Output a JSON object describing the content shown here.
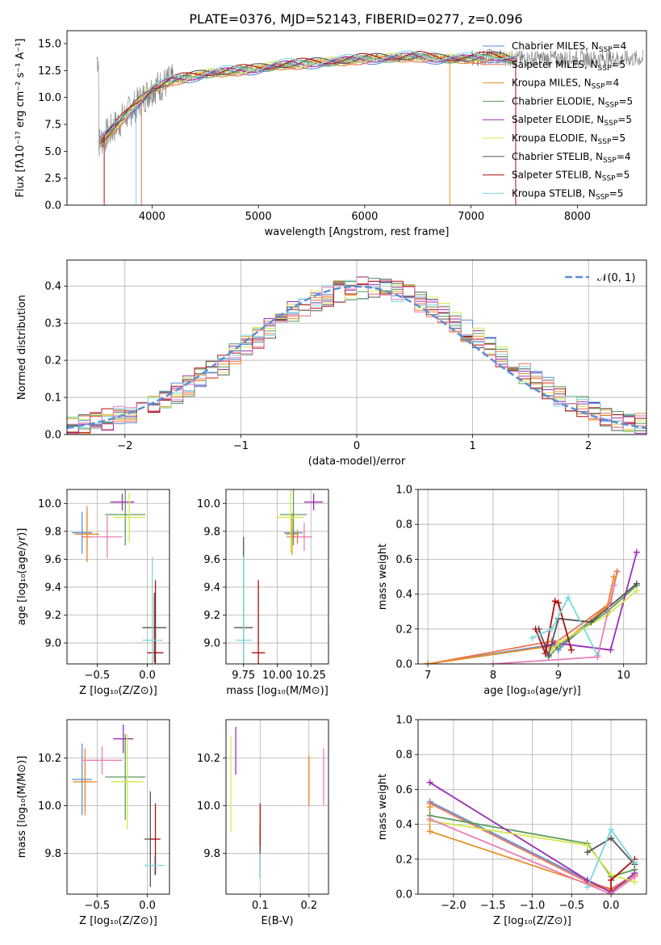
{
  "title": "PLATE=0376, MJD=52143, FIBERID=0277, z=0.096",
  "colors": {
    "chabrier_miles": "#5b8fd6",
    "salpeter_miles": "#f26f4f",
    "kroupa_miles": "#e6902a",
    "chabrier_elodie": "#5a9a5a",
    "salpeter_elodie": "#9a2fb5",
    "kroupa_elodie": "#d4e84a",
    "chabrier_stelib": "#555555",
    "salpeter_stelib": "#b01010",
    "kroupa_stelib": "#7ad8dc",
    "extra_pink": "#e87fb8",
    "normal_curve": "#5b8fd6"
  },
  "chart_data": [
    {
      "id": "spectrum",
      "type": "line",
      "xlabel": "wavelength [Angstrom, rest frame]",
      "ylabel": "Flux [fλ10⁻¹⁷ erg cm⁻² s⁻¹ A⁻¹]",
      "xlim": [
        3200,
        8650
      ],
      "ylim": [
        0,
        16.2
      ],
      "xticks": [
        4000,
        5000,
        6000,
        7000,
        8000
      ],
      "yticks": [
        0.0,
        2.5,
        5.0,
        7.5,
        10.0,
        12.5,
        15.0
      ],
      "legend_position": "right",
      "legend": [
        {
          "label": "Chabrier MILES, N_SSP=4",
          "color_key": "chabrier_miles"
        },
        {
          "label": "Salpeter MILES, N_SSP=5",
          "color_key": "salpeter_miles"
        },
        {
          "label": "Kroupa MILES, N_SSP=4",
          "color_key": "kroupa_miles"
        },
        {
          "label": "Chabrier ELODIE, N_SSP=5",
          "color_key": "chabrier_elodie"
        },
        {
          "label": "Salpeter ELODIE, N_SSP=5",
          "color_key": "salpeter_elodie"
        },
        {
          "label": "Kroupa ELODIE, N_SSP=5",
          "color_key": "kroupa_elodie"
        },
        {
          "label": "Chabrier STELIB, N_SSP=4",
          "color_key": "chabrier_stelib"
        },
        {
          "label": "Salpeter STELIB, N_SSP=5",
          "color_key": "salpeter_stelib"
        },
        {
          "label": "Kroupa STELIB, N_SSP=5",
          "color_key": "kroupa_stelib"
        }
      ],
      "continuum": {
        "x": [
          3500,
          3600,
          3700,
          3800,
          3900,
          4000,
          4200,
          4500,
          4800,
          5000,
          5200,
          5500,
          5800,
          6000,
          6300,
          6500,
          6700,
          7000,
          7200,
          7400
        ],
        "y": [
          5.8,
          6.8,
          7.8,
          8.8,
          9.8,
          10.8,
          11.6,
          12.2,
          12.5,
          12.7,
          13.0,
          13.2,
          13.4,
          13.6,
          13.7,
          13.8,
          13.6,
          13.6,
          13.8,
          13.6
        ]
      }
    },
    {
      "id": "residuals",
      "type": "step",
      "xlabel": "(data-model)/error",
      "ylabel": "Normed distribution",
      "xlim": [
        -2.5,
        2.5
      ],
      "ylim": [
        0,
        0.47
      ],
      "xticks": [
        -2,
        -1,
        0,
        1,
        2
      ],
      "yticks": [
        0.0,
        0.1,
        0.2,
        0.3,
        0.4
      ],
      "legend_position": "top-right",
      "legend": [
        {
          "label": "𝒩(0, 1)",
          "color_key": "normal_curve"
        }
      ],
      "bin_width": 0.1,
      "x_start": -2.5,
      "envelope": [
        0.025,
        0.03,
        0.035,
        0.04,
        0.05,
        0.06,
        0.07,
        0.08,
        0.095,
        0.11,
        0.13,
        0.15,
        0.17,
        0.19,
        0.215,
        0.24,
        0.26,
        0.285,
        0.31,
        0.33,
        0.345,
        0.36,
        0.375,
        0.385,
        0.39,
        0.395,
        0.395,
        0.39,
        0.385,
        0.375,
        0.36,
        0.345,
        0.325,
        0.3,
        0.28,
        0.26,
        0.235,
        0.21,
        0.19,
        0.165,
        0.145,
        0.125,
        0.105,
        0.09,
        0.075,
        0.06,
        0.05,
        0.04,
        0.035,
        0.03
      ]
    },
    {
      "id": "age_vs_Z",
      "type": "errorbar",
      "xlabel": "Z [log₁₀(Z/Z⊙)]",
      "ylabel": "age  [log₁₀(age/yr)]",
      "xlim": [
        -0.8,
        0.22
      ],
      "ylim": [
        8.85,
        10.1
      ],
      "xticks": [
        -0.5,
        0.0
      ],
      "yticks": [
        9.0,
        9.2,
        9.4,
        9.6,
        9.8,
        10.0
      ],
      "points": [
        {
          "c": "chabrier_miles",
          "x": -0.65,
          "y": 9.79,
          "xerr": 0.1,
          "yerr": 0.15
        },
        {
          "c": "salpeter_miles",
          "x": -0.6,
          "y": 9.76,
          "xerr": 0.05,
          "yerr": 0.18
        },
        {
          "c": "kroupa_miles",
          "x": -0.6,
          "y": 9.78,
          "xerr": 0.12,
          "yerr": 0.2
        },
        {
          "c": "chabrier_elodie",
          "x": -0.22,
          "y": 9.92,
          "xerr": 0.2,
          "yerr": 0.22
        },
        {
          "c": "salpeter_elodie",
          "x": -0.25,
          "y": 10.01,
          "xerr": 0.12,
          "yerr": 0.06
        },
        {
          "c": "kroupa_elodie",
          "x": -0.18,
          "y": 9.9,
          "xerr": 0.16,
          "yerr": 0.18
        },
        {
          "c": "chabrier_stelib",
          "x": 0.07,
          "y": 9.11,
          "xerr": 0.12,
          "yerr": 0.25
        },
        {
          "c": "salpeter_stelib",
          "x": 0.08,
          "y": 8.93,
          "xerr": 0.08,
          "yerr": 0.52
        },
        {
          "c": "kroupa_stelib",
          "x": 0.05,
          "y": 9.02,
          "xerr": 0.1,
          "yerr": 0.6
        },
        {
          "c": "extra_pink",
          "x": -0.4,
          "y": 9.76,
          "xerr": 0.15,
          "yerr": 0.15
        }
      ]
    },
    {
      "id": "age_vs_mass",
      "type": "errorbar",
      "xlabel": "mass [log₁₀(M/M⊙)]",
      "ylabel": "",
      "xlim": [
        9.62,
        10.38
      ],
      "ylim": [
        8.85,
        10.1
      ],
      "xticks": [
        9.75,
        10.0,
        10.25
      ],
      "yticks": [
        9.0,
        9.2,
        9.4,
        9.6,
        9.8,
        10.0
      ],
      "points": [
        {
          "c": "chabrier_miles",
          "x": 10.12,
          "y": 9.79,
          "xerr": 0.07,
          "yerr": 0.04
        },
        {
          "c": "salpeter_miles",
          "x": 10.15,
          "y": 9.76,
          "xerr": 0.08,
          "yerr": 0.05
        },
        {
          "c": "kroupa_miles",
          "x": 10.11,
          "y": 9.78,
          "xerr": 0.05,
          "yerr": 0.15
        },
        {
          "c": "chabrier_elodie",
          "x": 10.12,
          "y": 9.92,
          "xerr": 0.1,
          "yerr": 0.22
        },
        {
          "c": "salpeter_elodie",
          "x": 10.27,
          "y": 10.01,
          "xerr": 0.07,
          "yerr": 0.06
        },
        {
          "c": "kroupa_elodie",
          "x": 10.1,
          "y": 9.9,
          "xerr": 0.1,
          "yerr": 0.25
        },
        {
          "c": "chabrier_stelib",
          "x": 9.75,
          "y": 9.11,
          "xerr": 0.07,
          "yerr": 0.65
        },
        {
          "c": "salpeter_stelib",
          "x": 9.86,
          "y": 8.93,
          "xerr": 0.05,
          "yerr": 0.52
        },
        {
          "c": "kroupa_stelib",
          "x": 9.75,
          "y": 9.02,
          "xerr": 0.06,
          "yerr": 0.6
        },
        {
          "c": "extra_pink",
          "x": 10.2,
          "y": 9.76,
          "xerr": 0.06,
          "yerr": 0.1
        }
      ]
    },
    {
      "id": "weight_vs_age",
      "type": "line",
      "xlabel": "age  [log₁₀(age/yr)]",
      "ylabel": "mass weight",
      "xlim": [
        6.85,
        10.35
      ],
      "ylim": [
        0,
        1.0
      ],
      "xticks": [
        7,
        8,
        9,
        10
      ],
      "yticks": [
        0.0,
        0.2,
        0.4,
        0.6,
        0.8,
        1.0
      ],
      "series": [
        {
          "c": "chabrier_miles",
          "x": [
            7.0,
            8.9,
            9.0,
            9.8,
            9.9
          ],
          "y": [
            0.0,
            0.11,
            0.08,
            0.35,
            0.53
          ]
        },
        {
          "c": "salpeter_miles",
          "x": [
            7.0,
            8.9,
            8.95,
            9.8,
            9.9
          ],
          "y": [
            0.0,
            0.13,
            0.12,
            0.35,
            0.53
          ]
        },
        {
          "c": "kroupa_miles",
          "x": [
            7.0,
            8.85,
            9.0,
            9.75,
            9.85
          ],
          "y": [
            0.0,
            0.1,
            0.1,
            0.33,
            0.5
          ]
        },
        {
          "c": "chabrier_elodie",
          "x": [
            8.85,
            9.0,
            9.75,
            10.2
          ],
          "y": [
            0.04,
            0.1,
            0.3,
            0.45
          ]
        },
        {
          "c": "salpeter_elodie",
          "x": [
            8.8,
            8.95,
            9.8,
            10.2
          ],
          "y": [
            0.1,
            0.12,
            0.08,
            0.64
          ]
        },
        {
          "c": "kroupa_elodie",
          "x": [
            8.9,
            9.0,
            9.75,
            10.2
          ],
          "y": [
            0.08,
            0.12,
            0.28,
            0.42
          ]
        },
        {
          "c": "chabrier_stelib",
          "x": [
            8.7,
            8.85,
            9.0,
            9.5,
            10.2
          ],
          "y": [
            0.2,
            0.05,
            0.26,
            0.24,
            0.46
          ]
        },
        {
          "c": "salpeter_stelib",
          "x": [
            8.65,
            8.8,
            8.95,
            9.0,
            9.2
          ],
          "y": [
            0.2,
            0.06,
            0.36,
            0.35,
            0.08
          ]
        },
        {
          "c": "kroupa_stelib",
          "x": [
            8.6,
            8.9,
            9.15,
            9.6
          ],
          "y": [
            0.15,
            0.2,
            0.38,
            0.05
          ]
        },
        {
          "c": "extra_pink",
          "x": [
            8.0,
            9.6,
            9.85
          ],
          "y": [
            0.0,
            0.04,
            0.45
          ]
        }
      ]
    },
    {
      "id": "mass_vs_Z",
      "type": "errorbar",
      "xlabel": "Z [log₁₀(Z/Z⊙)]",
      "ylabel": "mass [log₁₀(M/M⊙)]",
      "xlim": [
        -0.8,
        0.22
      ],
      "ylim": [
        9.63,
        10.36
      ],
      "xticks": [
        -0.5,
        0.0
      ],
      "yticks": [
        9.8,
        10.0,
        10.2
      ],
      "points": [
        {
          "c": "chabrier_miles",
          "x": -0.65,
          "y": 10.11,
          "xerr": 0.1,
          "yerr": 0.15
        },
        {
          "c": "salpeter_miles",
          "x": -0.62,
          "y": 10.1,
          "xerr": 0.05,
          "yerr": 0.12
        },
        {
          "c": "kroupa_miles",
          "x": -0.62,
          "y": 10.1,
          "xerr": 0.12,
          "yerr": 0.14
        },
        {
          "c": "chabrier_elodie",
          "x": -0.22,
          "y": 10.12,
          "xerr": 0.2,
          "yerr": 0.18
        },
        {
          "c": "salpeter_elodie",
          "x": -0.24,
          "y": 10.28,
          "xerr": 0.1,
          "yerr": 0.06
        },
        {
          "c": "kroupa_elodie",
          "x": -0.2,
          "y": 10.1,
          "xerr": 0.16,
          "yerr": 0.2
        },
        {
          "c": "chabrier_stelib",
          "x": 0.03,
          "y": 9.86,
          "xerr": 0.06,
          "yerr": 0.2
        },
        {
          "c": "salpeter_stelib",
          "x": 0.08,
          "y": 9.86,
          "xerr": 0.05,
          "yerr": 0.15
        },
        {
          "c": "kroupa_stelib",
          "x": 0.07,
          "y": 9.75,
          "xerr": 0.1,
          "yerr": 0.04
        },
        {
          "c": "extra_pink",
          "x": -0.45,
          "y": 10.19,
          "xerr": 0.2,
          "yerr": 0.06
        }
      ]
    },
    {
      "id": "mass_vs_ebv",
      "type": "errorbar",
      "xlabel": "E(B-V)",
      "ylabel": "",
      "xlim": [
        0.03,
        0.24
      ],
      "ylim": [
        9.63,
        10.36
      ],
      "xticks": [
        0.1,
        0.2
      ],
      "yticks": [
        9.8,
        10.0,
        10.2
      ],
      "points": [
        {
          "c": "chabrier_miles",
          "x": 0.1,
          "y": 9.8,
          "xerr": 0.0,
          "yerr": 0.1
        },
        {
          "c": "salpeter_miles",
          "x": 0.2,
          "y": 10.1,
          "xerr": 0.0,
          "yerr": 0.1
        },
        {
          "c": "kroupa_miles",
          "x": 0.2,
          "y": 10.11,
          "xerr": 0.0,
          "yerr": 0.1
        },
        {
          "c": "chabrier_elodie",
          "x": 0.1,
          "y": 9.8,
          "xerr": 0.0,
          "yerr": 0.1
        },
        {
          "c": "salpeter_elodie",
          "x": 0.05,
          "y": 10.23,
          "xerr": 0.0,
          "yerr": 0.1
        },
        {
          "c": "kroupa_elodie",
          "x": 0.04,
          "y": 10.09,
          "xerr": 0.0,
          "yerr": 0.2
        },
        {
          "c": "chabrier_stelib",
          "x": 0.1,
          "y": 9.81,
          "xerr": 0.0,
          "yerr": 0.11
        },
        {
          "c": "salpeter_stelib",
          "x": 0.1,
          "y": 9.92,
          "xerr": 0.0,
          "yerr": 0.09
        },
        {
          "c": "kroupa_stelib",
          "x": 0.1,
          "y": 9.75,
          "xerr": 0.0,
          "yerr": 0.05
        },
        {
          "c": "extra_pink",
          "x": 0.23,
          "y": 10.12,
          "xerr": 0.0,
          "yerr": 0.12
        }
      ]
    },
    {
      "id": "weight_vs_Z",
      "type": "line",
      "xlabel": "Z [log₁₀(Z/Z⊙)]",
      "ylabel": "mass weight",
      "xlim": [
        -2.45,
        0.45
      ],
      "ylim": [
        0,
        1.0
      ],
      "xticks": [
        -2.0,
        -1.5,
        -1.0,
        -0.5,
        0.0
      ],
      "yticks": [
        0.0,
        0.2,
        0.4,
        0.6,
        0.8,
        1.0
      ],
      "series": [
        {
          "c": "chabrier_miles",
          "x": [
            -2.3,
            -0.3,
            0.0,
            0.3
          ],
          "y": [
            0.53,
            0.08,
            0.02,
            0.12
          ]
        },
        {
          "c": "salpeter_miles",
          "x": [
            -2.3,
            -0.3,
            0.0,
            0.3
          ],
          "y": [
            0.52,
            0.07,
            0.03,
            0.11
          ]
        },
        {
          "c": "kroupa_miles",
          "x": [
            -2.3,
            -2.3,
            -0.3,
            0.0,
            0.3
          ],
          "y": [
            0.5,
            0.36,
            0.06,
            0.02,
            0.1
          ]
        },
        {
          "c": "chabrier_elodie",
          "x": [
            -2.3,
            -0.3,
            0.0,
            0.3
          ],
          "y": [
            0.45,
            0.29,
            0.1,
            0.14
          ]
        },
        {
          "c": "salpeter_elodie",
          "x": [
            -2.3,
            -0.3,
            0.0,
            0.3
          ],
          "y": [
            0.64,
            0.08,
            0.01,
            0.12
          ]
        },
        {
          "c": "kroupa_elodie",
          "x": [
            -2.3,
            -0.3,
            0.0,
            0.3
          ],
          "y": [
            0.42,
            0.28,
            0.11,
            0.07
          ]
        },
        {
          "c": "chabrier_stelib",
          "x": [
            -0.3,
            0.0,
            0.3
          ],
          "y": [
            0.24,
            0.32,
            0.17
          ]
        },
        {
          "c": "salpeter_stelib",
          "x": [
            0.0,
            0.0,
            0.3
          ],
          "y": [
            0.0,
            0.08,
            0.2
          ]
        },
        {
          "c": "kroupa_stelib",
          "x": [
            -0.3,
            0.0,
            0.3
          ],
          "y": [
            0.04,
            0.37,
            0.18
          ]
        },
        {
          "c": "extra_pink",
          "x": [
            -2.3,
            0.0,
            0.3
          ],
          "y": [
            0.43,
            0.0,
            0.1
          ]
        }
      ]
    }
  ]
}
